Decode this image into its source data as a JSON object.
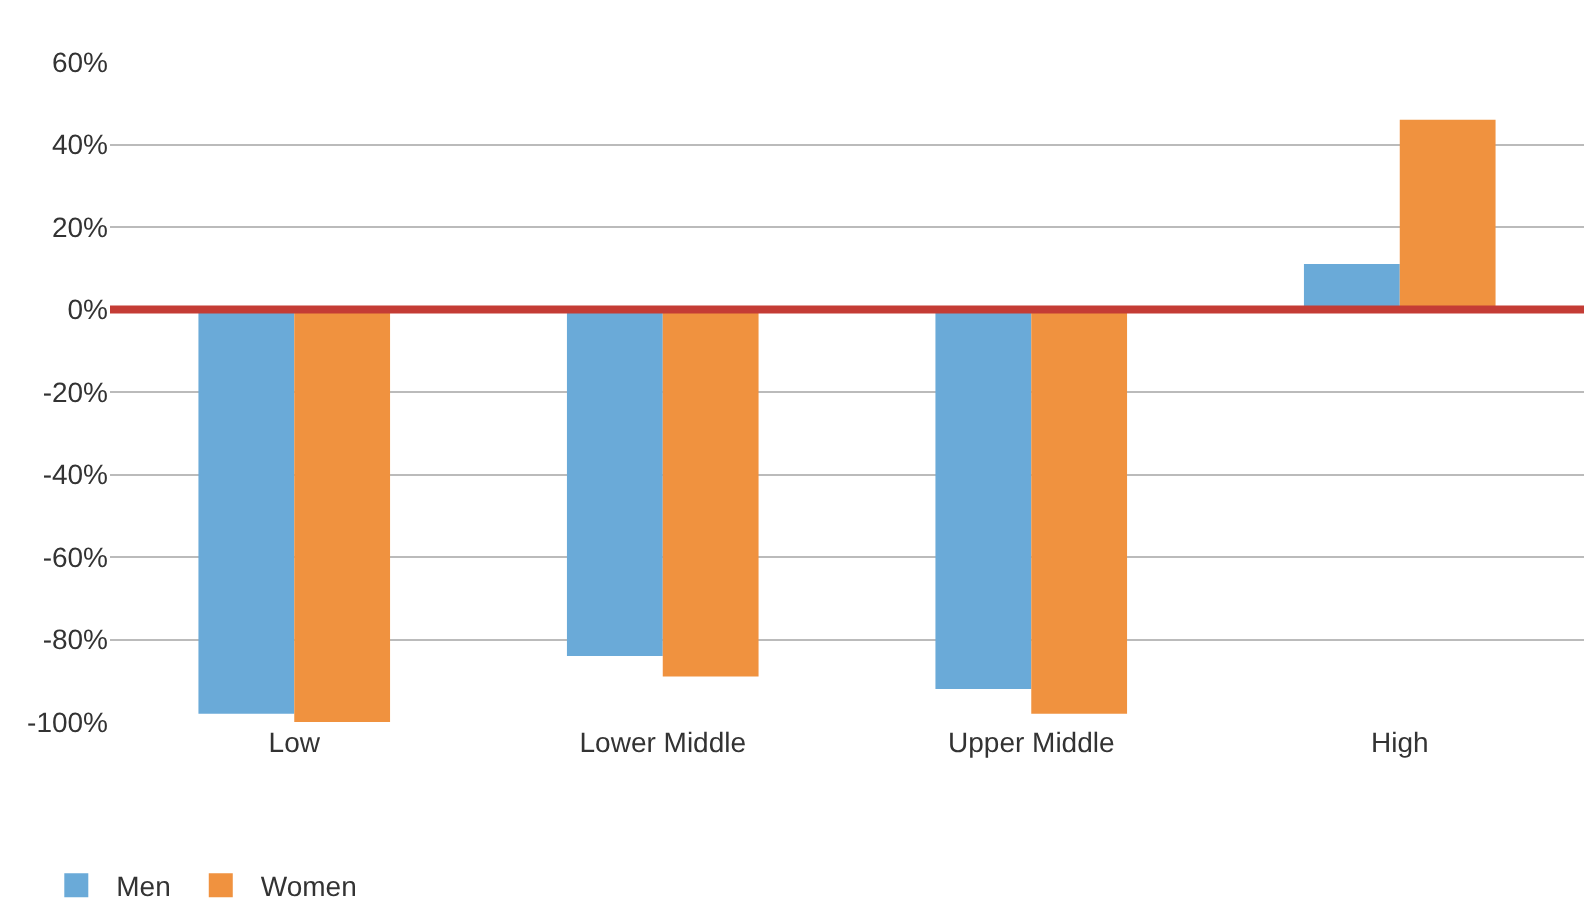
{
  "chart_data": {
    "type": "bar",
    "categories": [
      "Low",
      "Lower Middle",
      "Upper Middle",
      "High"
    ],
    "series": [
      {
        "name": "Men",
        "color": "#6aaad8",
        "values": [
          -98,
          -84,
          -92,
          11
        ]
      },
      {
        "name": "Women",
        "color": "#f0923f",
        "values": [
          -100,
          -89,
          -98,
          46
        ]
      }
    ],
    "ylim": [
      -100,
      60
    ],
    "yticks": [
      {
        "value": 60,
        "label": "60%"
      },
      {
        "value": 40,
        "label": "40%"
      },
      {
        "value": 20,
        "label": "20%"
      },
      {
        "value": 0,
        "label": "0%"
      },
      {
        "value": -20,
        "label": "-20%"
      },
      {
        "value": -40,
        "label": "-40%"
      },
      {
        "value": -60,
        "label": "-60%"
      },
      {
        "value": -80,
        "label": "-80%"
      },
      {
        "value": -100,
        "label": "-100%"
      }
    ],
    "grid": "y",
    "legend": "bottom left",
    "ref_lines": [
      {
        "axis": "y",
        "value": 0,
        "color": "#c43c35"
      }
    ]
  }
}
